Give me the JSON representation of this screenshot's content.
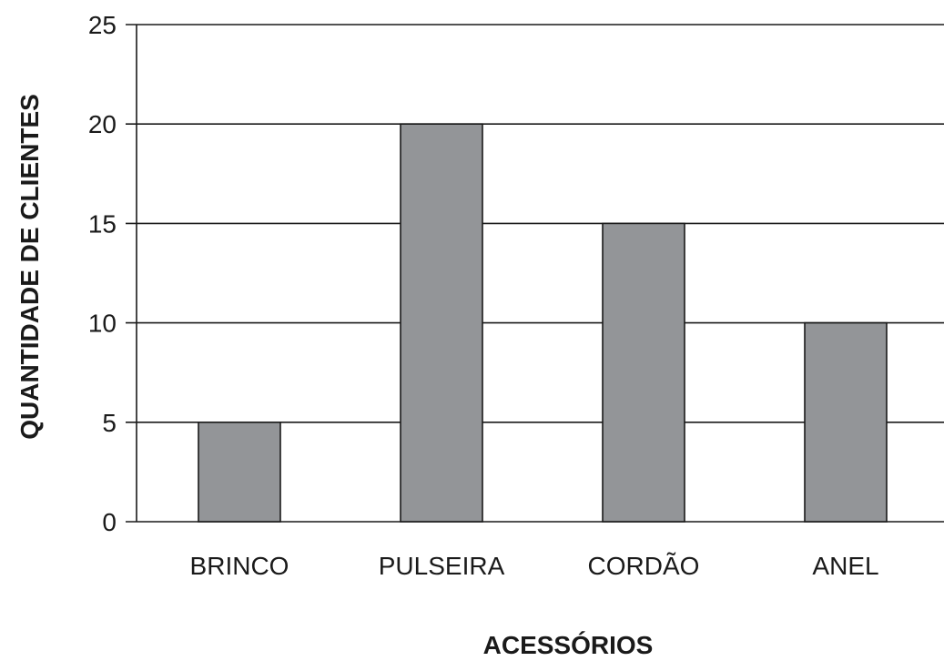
{
  "chart_data": {
    "type": "bar",
    "title": "",
    "categories": [
      "BRINCO",
      "PULSEIRA",
      "CORDÃO",
      "ANEL"
    ],
    "values": [
      5,
      20,
      15,
      10
    ],
    "xlabel": "ACESSÓRIOS",
    "ylabel": "QUANTIDADE DE CLIENTES",
    "ylim": [
      0,
      25
    ],
    "yticks": [
      0,
      5,
      10,
      15,
      20,
      25
    ],
    "grid": true,
    "legend": "none",
    "bar_color": "#939598",
    "bar_stroke": "#1a1a1a",
    "grid_color": "#1a1a1a"
  }
}
